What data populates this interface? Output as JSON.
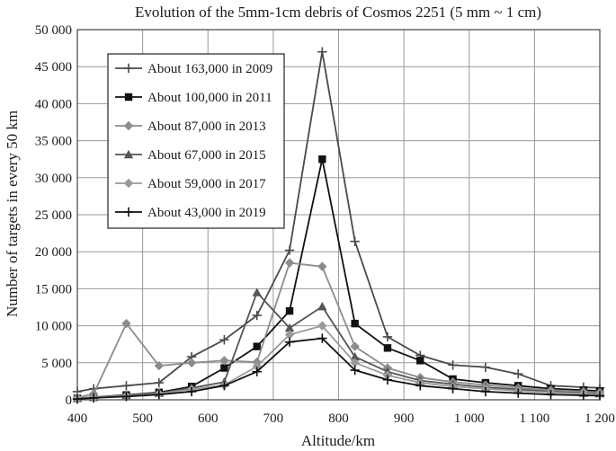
{
  "chart_data": {
    "type": "line",
    "title": "Evolution of the 5mm-1cm debris of Cosmos 2251  (5 mm ~ 1 cm)",
    "xlabel": "Altitude/km",
    "ylabel": "Number of targets in every 50 km",
    "xlim": [
      400,
      1200
    ],
    "ylim": [
      0,
      50000
    ],
    "xticks": [
      400,
      500,
      600,
      700,
      800,
      900,
      1000,
      1100,
      1200
    ],
    "xtick_labels": [
      "400",
      "500",
      "600",
      "700",
      "800",
      "900",
      "1 000",
      "1 100",
      "1 200"
    ],
    "yticks": [
      0,
      5000,
      10000,
      15000,
      20000,
      25000,
      30000,
      35000,
      40000,
      45000,
      50000
    ],
    "ytick_labels": [
      "0",
      "5 000",
      "10 000",
      "15 000",
      "20 000",
      "25 000",
      "30 000",
      "35 000",
      "40 000",
      "45 000",
      "50 000"
    ],
    "grid": true,
    "legend_position": "top-left",
    "x": [
      400,
      425,
      475,
      525,
      575,
      625,
      675,
      725,
      775,
      825,
      875,
      925,
      975,
      1025,
      1075,
      1125,
      1175,
      1200
    ],
    "series": [
      {
        "name": "About 163,000 in 2009",
        "marker": "plus",
        "color": "#4a4a4a",
        "values": [
          1100,
          1500,
          1900,
          2300,
          5800,
          8100,
          11400,
          20200,
          47000,
          21400,
          8500,
          6000,
          4700,
          4400,
          3500,
          1900,
          1700,
          1600
        ]
      },
      {
        "name": "About 100,000 in 2011",
        "marker": "square",
        "color": "#111111",
        "values": [
          200,
          350,
          650,
          1000,
          1800,
          4300,
          7200,
          12000,
          32500,
          10300,
          7000,
          5300,
          2800,
          2300,
          1900,
          1500,
          1300,
          1200
        ]
      },
      {
        "name": "About 87,000 in 2013",
        "marker": "diamond",
        "color": "#8c8c8c",
        "values": [
          300,
          800,
          10300,
          4600,
          5000,
          5300,
          5100,
          18500,
          18000,
          7200,
          4300,
          3000,
          2400,
          2000,
          1600,
          1300,
          1100,
          1000
        ]
      },
      {
        "name": "About 67,000 in 2015",
        "marker": "triangle",
        "color": "#555555",
        "values": [
          200,
          350,
          600,
          900,
          1600,
          2400,
          14500,
          9700,
          12600,
          5800,
          3800,
          2600,
          2100,
          1700,
          1400,
          1100,
          900,
          850
        ]
      },
      {
        "name": "About 59,000 in 2017",
        "marker": "diamond",
        "color": "#9a9a9a",
        "values": [
          150,
          300,
          550,
          850,
          1400,
          2000,
          4500,
          8800,
          10000,
          5000,
          3300,
          2300,
          1800,
          1500,
          1200,
          1000,
          800,
          750
        ]
      },
      {
        "name": "About 43,000 in 2019",
        "marker": "plus",
        "color": "#111111",
        "values": [
          100,
          250,
          450,
          700,
          1100,
          1900,
          3800,
          7800,
          8300,
          4000,
          2700,
          1900,
          1500,
          1100,
          900,
          700,
          600,
          550
        ]
      }
    ]
  }
}
